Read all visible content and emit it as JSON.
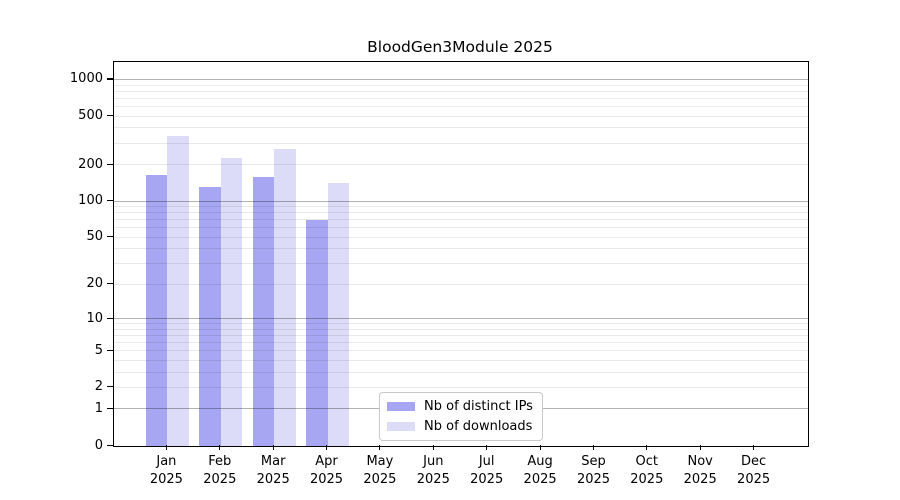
{
  "title": "BloodGen3Module 2025",
  "chart_data": {
    "type": "bar",
    "title": "BloodGen3Module 2025",
    "categories": [
      "Jan",
      "Feb",
      "Mar",
      "Apr",
      "May",
      "Jun",
      "Jul",
      "Aug",
      "Sep",
      "Oct",
      "Nov",
      "Dec"
    ],
    "category_year": "2025",
    "series": [
      {
        "name": "Nb of distinct IPs",
        "color": "#a6a6f2",
        "values": [
          165,
          133,
          158,
          70,
          null,
          null,
          null,
          null,
          null,
          null,
          null,
          null
        ]
      },
      {
        "name": "Nb of downloads",
        "color": "#dcdcf8",
        "values": [
          348,
          227,
          270,
          141,
          null,
          null,
          null,
          null,
          null,
          null,
          null,
          null
        ]
      }
    ],
    "y_ticks": [
      0,
      1,
      2,
      5,
      10,
      20,
      50,
      100,
      200,
      500,
      1000
    ],
    "y_scale": "log10(value+1)",
    "ylim": [
      0,
      1200
    ],
    "grid": true,
    "grid_major_at": [
      1,
      10,
      100,
      1000
    ],
    "grid_minor_at": [
      2,
      3,
      4,
      5,
      6,
      7,
      8,
      9,
      20,
      30,
      40,
      50,
      60,
      70,
      80,
      90,
      200,
      300,
      400,
      500,
      600,
      700,
      800,
      900
    ],
    "legend_position": "bottom-center-inside",
    "colors": {
      "bar_distinct_ips": "#a6a6f2",
      "bar_downloads": "#dcdcf8",
      "axis": "#000000",
      "grid_major": "#b3b3b3",
      "grid_minor": "#ebebeb",
      "legend_border": "#c9c9c9"
    }
  }
}
